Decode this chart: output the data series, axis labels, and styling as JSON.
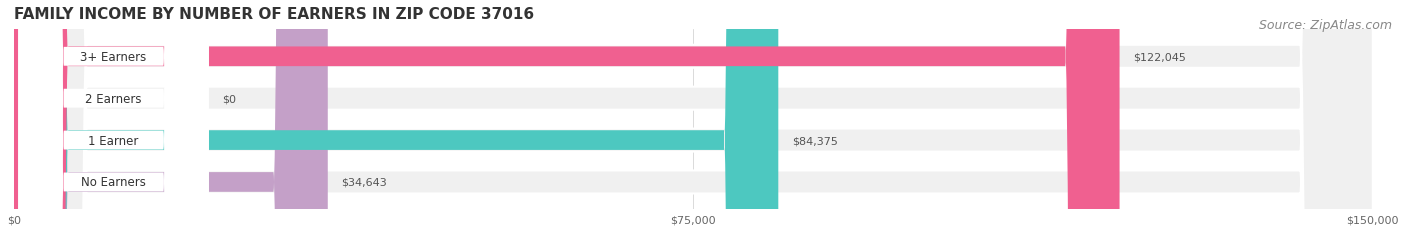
{
  "title": "FAMILY INCOME BY NUMBER OF EARNERS IN ZIP CODE 37016",
  "source": "Source: ZipAtlas.com",
  "categories": [
    "No Earners",
    "1 Earner",
    "2 Earners",
    "3+ Earners"
  ],
  "values": [
    34643,
    84375,
    0,
    122045
  ],
  "bar_colors": [
    "#c4a0c8",
    "#4dc8c0",
    "#a8b4e8",
    "#f06090"
  ],
  "row_bg_color": "#f0f0f0",
  "label_values": [
    "$34,643",
    "$84,375",
    "$0",
    "$122,045"
  ],
  "xmax": 150000,
  "xticks": [
    0,
    75000,
    150000
  ],
  "xtick_labels": [
    "$0",
    "$75,000",
    "$150,000"
  ],
  "title_fontsize": 11,
  "source_fontsize": 9,
  "bar_height": 0.55,
  "figsize": [
    14.06,
    2.32
  ],
  "dpi": 100
}
